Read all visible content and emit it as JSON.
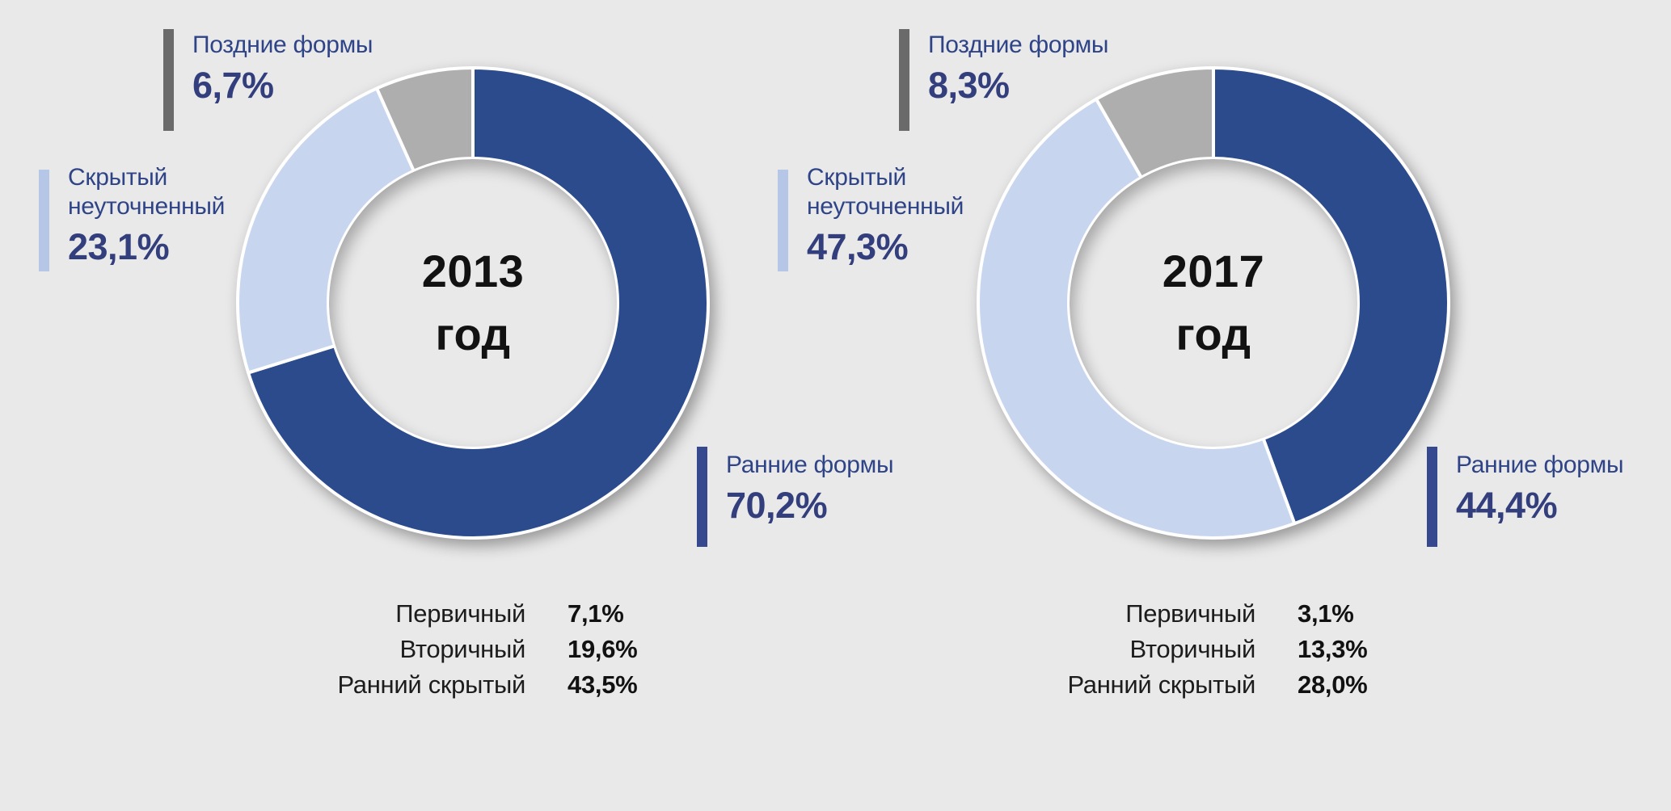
{
  "page": {
    "background_color": "#e9e9e9"
  },
  "colors": {
    "slice_early": "#2b4b8c",
    "slice_hidden": "#c7d5ef",
    "slice_late": "#aeaeae",
    "bar_early": "#36498f",
    "bar_hidden": "#b6c6e6",
    "bar_late": "#6a6a6a",
    "callout_text": "#2f4487",
    "center_text": "#121212"
  },
  "chart_data": [
    {
      "type": "pie",
      "donut": true,
      "title": "2013 год",
      "labels": [
        "Ранние формы",
        "Скрытый неуточненный",
        "Поздние формы"
      ],
      "slice_ids": [
        "early-forms",
        "hidden-unspecified",
        "late-forms"
      ],
      "values": [
        70.2,
        23.1,
        6.7
      ],
      "colors": [
        "#2b4b8c",
        "#c7d5ef",
        "#aeaeae"
      ],
      "start_angle": "top",
      "direction": "clockwise",
      "annotations": [
        {
          "label": "Первичный",
          "value": 7.1
        },
        {
          "label": "Вторичный",
          "value": 19.6
        },
        {
          "label": "Ранний скрытый",
          "value": 43.5
        }
      ]
    },
    {
      "type": "pie",
      "donut": true,
      "title": "2017 год",
      "labels": [
        "Ранние формы",
        "Скрытый неуточненный",
        "Поздние формы"
      ],
      "slice_ids": [
        "early-forms",
        "hidden-unspecified",
        "late-forms"
      ],
      "values": [
        44.4,
        47.3,
        8.3
      ],
      "colors": [
        "#2b4b8c",
        "#c7d5ef",
        "#aeaeae"
      ],
      "start_angle": "top",
      "direction": "clockwise",
      "annotations": [
        {
          "label": "Первичный",
          "value": 3.1
        },
        {
          "label": "Вторичный",
          "value": 13.3
        },
        {
          "label": "Ранний скрытый",
          "value": 28.0
        }
      ]
    }
  ],
  "charts": [
    {
      "center": {
        "year": "2013",
        "word": "год"
      },
      "callouts": {
        "late": {
          "label": "Поздние формы",
          "value": "6,7%"
        },
        "hidden": {
          "label": "Скрытый неуточненный",
          "value": "23,1%"
        },
        "early": {
          "label": "Ранние формы",
          "value": "70,2%"
        }
      },
      "legend": [
        {
          "label": "Первичный",
          "value": "7,1%"
        },
        {
          "label": "Вторичный",
          "value": "19,6%"
        },
        {
          "label": "Ранний скрытый",
          "value": "43,5%"
        }
      ]
    },
    {
      "center": {
        "year": "2017",
        "word": "год"
      },
      "callouts": {
        "late": {
          "label": "Поздние формы",
          "value": "8,3%"
        },
        "hidden": {
          "label": "Скрытый неуточненный",
          "value": "47,3%"
        },
        "early": {
          "label": "Ранние формы",
          "value": "44,4%"
        }
      },
      "legend": [
        {
          "label": "Первичный",
          "value": "3,1%"
        },
        {
          "label": "Вторичный",
          "value": "13,3%"
        },
        {
          "label": "Ранний скрытый",
          "value": "28,0%"
        }
      ]
    }
  ]
}
